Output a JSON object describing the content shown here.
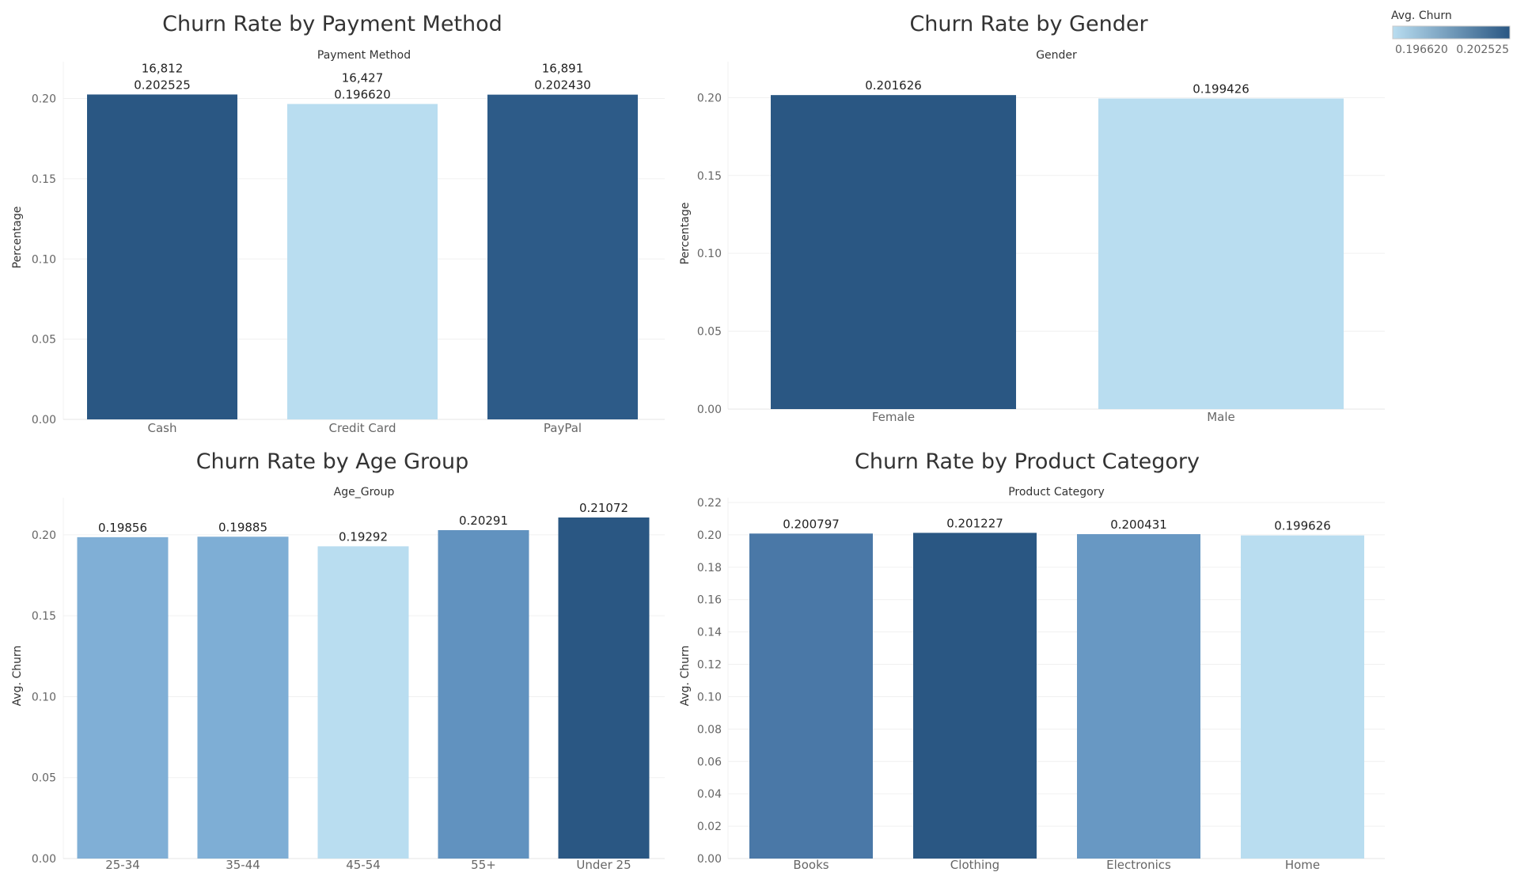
{
  "legend": {
    "title": "Avg. Churn",
    "min_label": "0.196620",
    "max_label": "0.202525",
    "color_low": "#b9ddf0",
    "color_high": "#2a5783"
  },
  "chart_data": [
    {
      "type": "bar",
      "title": "Churn Rate by Payment Method",
      "xlabel": "Payment Method",
      "ylabel": "Percentage",
      "ylim": [
        0,
        0.22
      ],
      "yticks": [
        "0.00",
        "0.05",
        "0.10",
        "0.15",
        "0.20"
      ],
      "categories": [
        "Cash",
        "Credit Card",
        "PayPal"
      ],
      "values": [
        0.202525,
        0.19662,
        0.20243
      ],
      "counts": [
        16812,
        16427,
        16891
      ],
      "label_lines": [
        [
          "16,812",
          "0.202525"
        ],
        [
          "16,427",
          "0.196620"
        ],
        [
          "16,891",
          "0.202430"
        ]
      ],
      "colors": [
        "#2a5783",
        "#b9ddf0",
        "#2d5b88"
      ]
    },
    {
      "type": "bar",
      "title": "Churn Rate by Gender",
      "xlabel": "Gender",
      "ylabel": "Percentage",
      "ylim": [
        0,
        0.22
      ],
      "yticks": [
        "0.00",
        "0.05",
        "0.10",
        "0.15",
        "0.20"
      ],
      "categories": [
        "Female",
        "Male"
      ],
      "values": [
        0.201626,
        0.199426
      ],
      "label_lines": [
        [
          "0.201626"
        ],
        [
          "0.199426"
        ]
      ],
      "colors": [
        "#2a5783",
        "#b9ddf0"
      ]
    },
    {
      "type": "bar",
      "title": "Churn Rate by Age Group",
      "xlabel": "Age_Group",
      "ylabel": "Avg. Churn",
      "ylim": [
        0,
        0.22
      ],
      "yticks": [
        "0.00",
        "0.05",
        "0.10",
        "0.15",
        "0.20"
      ],
      "categories": [
        "25-34",
        "35-44",
        "45-54",
        "55+",
        "Under 25"
      ],
      "values": [
        0.19856,
        0.19885,
        0.19292,
        0.20291,
        0.21072
      ],
      "label_lines": [
        [
          "0.19856"
        ],
        [
          "0.19885"
        ],
        [
          "0.19292"
        ],
        [
          "0.20291"
        ],
        [
          "0.21072"
        ]
      ],
      "colors": [
        "#80afd6",
        "#7eaed5",
        "#b9ddf0",
        "#6192bf",
        "#2a5783"
      ]
    },
    {
      "type": "bar",
      "title": "Churn Rate by Product Category",
      "xlabel": "Product Category",
      "ylabel": "Avg. Churn",
      "ylim": [
        0,
        0.22
      ],
      "yticks": [
        "0.00",
        "0.02",
        "0.04",
        "0.06",
        "0.08",
        "0.10",
        "0.12",
        "0.14",
        "0.16",
        "0.18",
        "0.20",
        "0.22"
      ],
      "categories": [
        "Books",
        "Clothing",
        "Electronics",
        "Home"
      ],
      "values": [
        0.200797,
        0.201227,
        0.200431,
        0.199626
      ],
      "label_lines": [
        [
          "0.200797"
        ],
        [
          "0.201227"
        ],
        [
          "0.200431"
        ],
        [
          "0.199626"
        ]
      ],
      "colors": [
        "#4a78a7",
        "#2a5783",
        "#6898c3",
        "#b9ddf0"
      ]
    }
  ]
}
